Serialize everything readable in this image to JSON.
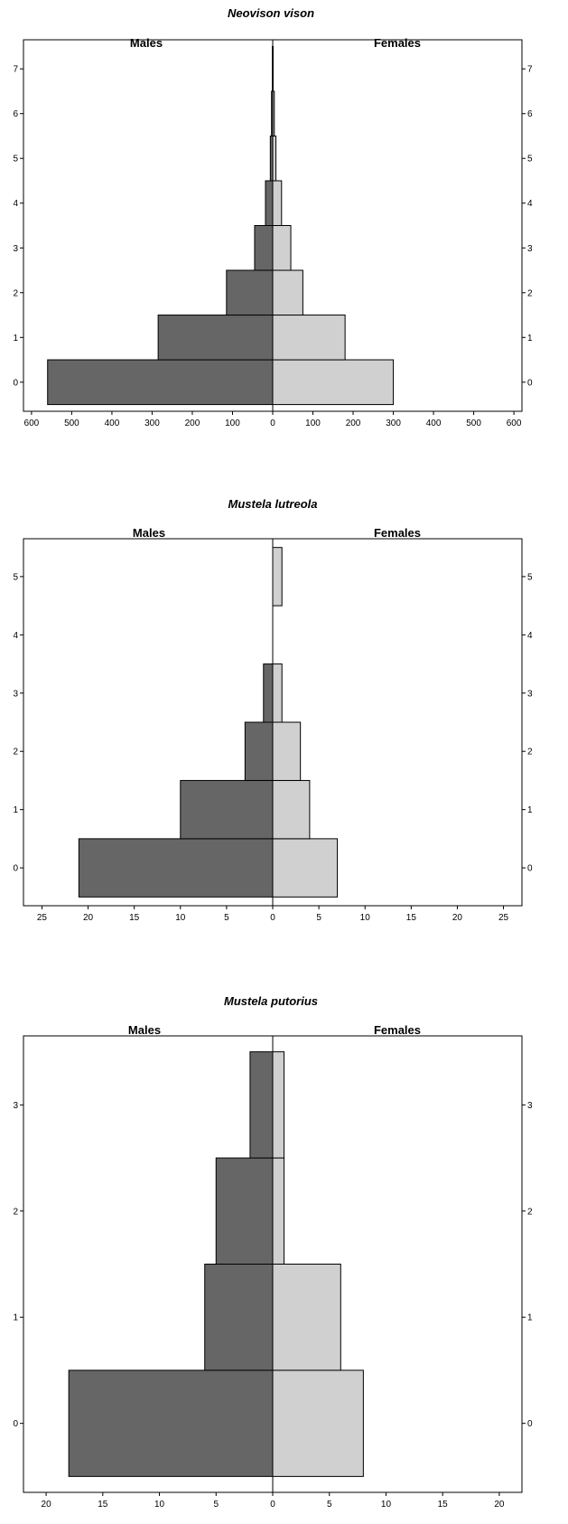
{
  "colors": {
    "males": "#666666",
    "females": "#d0d0d0",
    "stroke": "#000000"
  },
  "chart_data": [
    {
      "type": "bar",
      "orientation": "horizontal-pyramid",
      "title": "Neovison vison",
      "left_label": "Males",
      "right_label": "Females",
      "categories": [
        "0",
        "1",
        "2",
        "3",
        "4",
        "5",
        "6",
        "7"
      ],
      "series": [
        {
          "name": "Males",
          "values": [
            560,
            285,
            115,
            45,
            18,
            6,
            3,
            1
          ]
        },
        {
          "name": "Females",
          "values": [
            300,
            180,
            75,
            45,
            22,
            8,
            4,
            1
          ]
        }
      ],
      "xticks": [
        600,
        500,
        400,
        300,
        200,
        100,
        0,
        100,
        200,
        300,
        400,
        500,
        600
      ],
      "xlim": [
        -620,
        620
      ],
      "ylim": [
        -0.65,
        7.65
      ],
      "ylabel": "",
      "xlabel": ""
    },
    {
      "type": "bar",
      "orientation": "horizontal-pyramid",
      "title": "Mustela lutreola",
      "left_label": "Males",
      "right_label": "Females",
      "categories": [
        "0",
        "1",
        "2",
        "3",
        "4",
        "5"
      ],
      "series": [
        {
          "name": "Males",
          "values": [
            21,
            10,
            3,
            1,
            0,
            0
          ]
        },
        {
          "name": "Females",
          "values": [
            7,
            4,
            3,
            1,
            0,
            1
          ]
        }
      ],
      "xticks": [
        25,
        20,
        15,
        10,
        5,
        0,
        5,
        10,
        15,
        20,
        25
      ],
      "xlim": [
        -27,
        27
      ],
      "ylim": [
        -0.65,
        5.65
      ],
      "ylabel": "",
      "xlabel": ""
    },
    {
      "type": "bar",
      "orientation": "horizontal-pyramid",
      "title": "Mustela putorius",
      "left_label": "Males",
      "right_label": "Females",
      "categories": [
        "0",
        "1",
        "2",
        "3"
      ],
      "series": [
        {
          "name": "Males",
          "values": [
            18,
            6,
            5,
            2
          ]
        },
        {
          "name": "Females",
          "values": [
            8,
            6,
            1,
            1
          ]
        }
      ],
      "xticks": [
        20,
        15,
        10,
        5,
        0,
        5,
        10,
        15,
        20
      ],
      "xlim": [
        -22,
        22
      ],
      "ylim": [
        -0.65,
        3.65
      ],
      "ylabel": "",
      "xlabel": ""
    }
  ]
}
